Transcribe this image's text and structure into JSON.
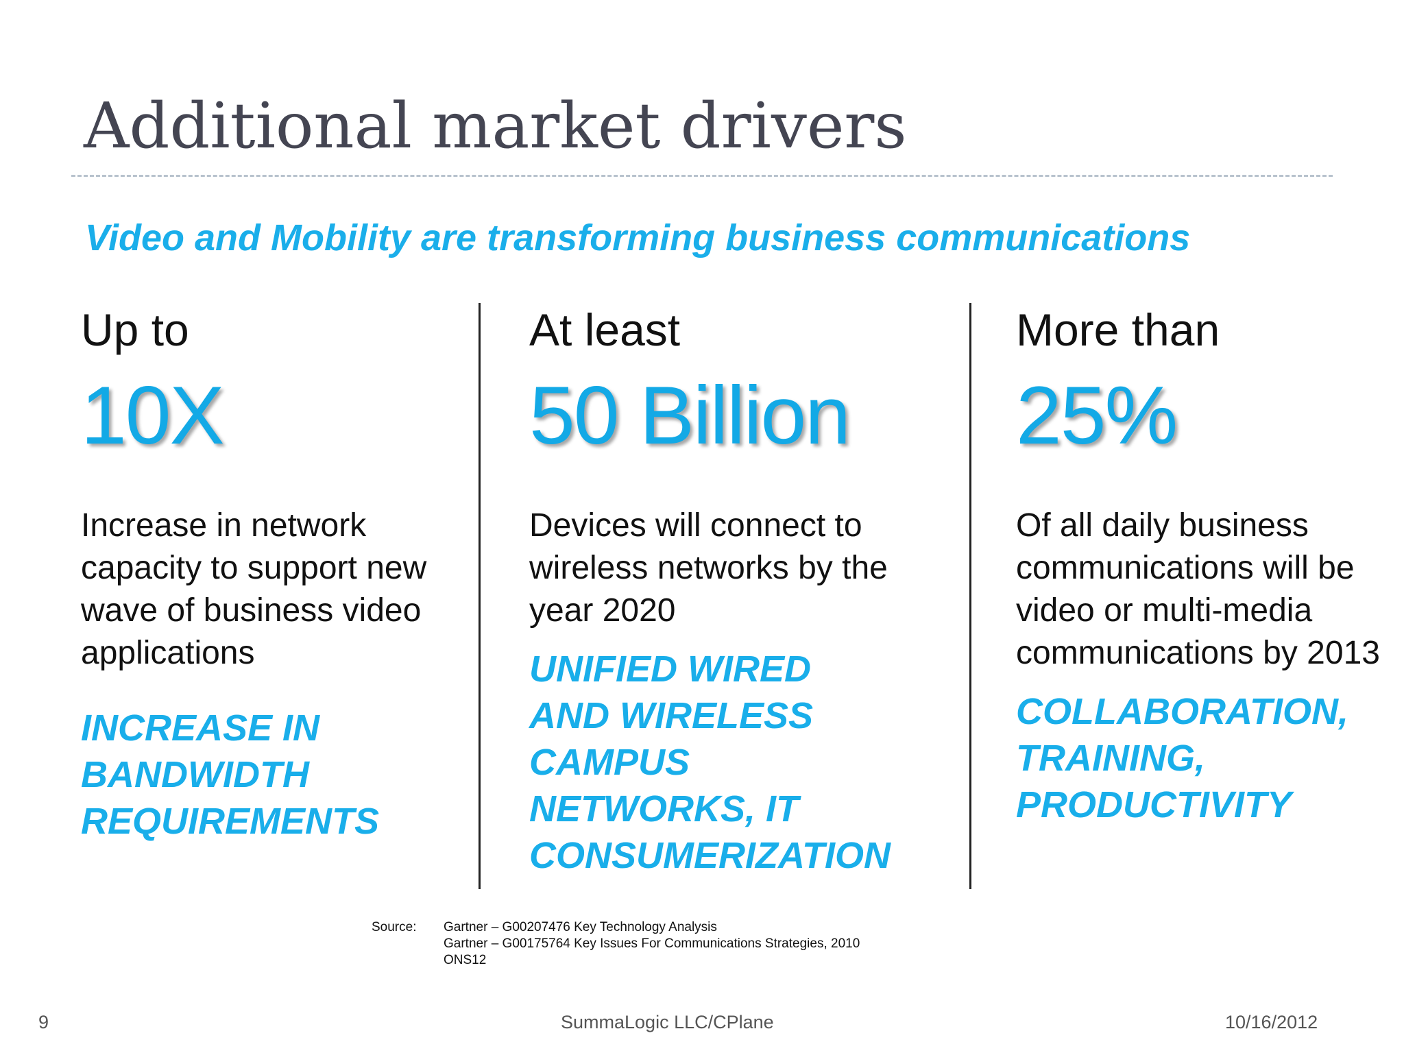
{
  "title": "Additional market drivers",
  "subtitle": "Video and Mobility are transforming business communications",
  "columns": [
    {
      "lead": "Up to",
      "figure": "10X",
      "description": "Increase in network capacity to support new wave of business video applications",
      "emphasis": [
        "INCREASE IN",
        "BANDWIDTH",
        "REQUIREMENTS"
      ]
    },
    {
      "lead": "At least",
      "figure": "50 Billion",
      "description": "Devices will connect to wireless networks by the year 2020",
      "emphasis": [
        "UNIFIED WIRED",
        "AND WIRELESS",
        "CAMPUS",
        "NETWORKS, IT",
        "CONSUMERIZATION"
      ]
    },
    {
      "lead": "More than",
      "figure": "25%",
      "description": "Of all daily business communications will be video or multi-media communications by 2013",
      "emphasis": [
        "COLLABORATION,",
        "TRAINING,",
        "PRODUCTIVITY"
      ]
    }
  ],
  "source": {
    "label": "Source:",
    "lines": [
      "Gartner – G00207476 Key Technology Analysis",
      "Gartner – G00175764 Key Issues For Communications Strategies, 2010",
      "ONS12"
    ]
  },
  "footer": {
    "page_number": "9",
    "center_text": "SummaLogic LLC/CPlane",
    "date": "10/16/2012"
  },
  "colors": {
    "accent": "#13a9e6",
    "title": "#444552",
    "divider_rule": "#b7c2cd"
  }
}
